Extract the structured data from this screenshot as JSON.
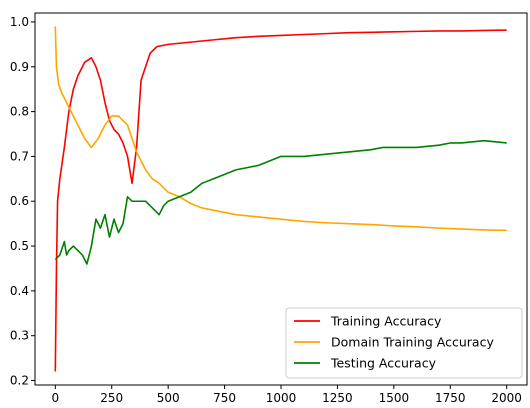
{
  "chart_data": {
    "type": "line",
    "title": "",
    "xlabel": "",
    "ylabel": "",
    "xlim": [
      -90,
      2090
    ],
    "ylim": [
      0.19,
      1.02
    ],
    "xticks": [
      0,
      250,
      500,
      750,
      1000,
      1250,
      1500,
      1750,
      2000
    ],
    "yticks": [
      0.2,
      0.3,
      0.4,
      0.5,
      0.6,
      0.7,
      0.8,
      0.9,
      1.0
    ],
    "grid": false,
    "legend_position": "bottom-right",
    "series": [
      {
        "name": "Training Accuracy",
        "color": "#ff0000",
        "x": [
          0,
          5,
          10,
          20,
          40,
          60,
          80,
          100,
          130,
          160,
          180,
          200,
          220,
          240,
          260,
          280,
          300,
          320,
          340,
          360,
          380,
          400,
          420,
          450,
          500,
          600,
          700,
          800,
          900,
          1000,
          1100,
          1200,
          1300,
          1400,
          1500,
          1600,
          1700,
          1800,
          1900,
          2000
        ],
        "values": [
          0.22,
          0.45,
          0.6,
          0.65,
          0.72,
          0.8,
          0.85,
          0.88,
          0.91,
          0.92,
          0.9,
          0.87,
          0.82,
          0.78,
          0.76,
          0.75,
          0.73,
          0.7,
          0.64,
          0.72,
          0.87,
          0.9,
          0.93,
          0.945,
          0.95,
          0.955,
          0.96,
          0.965,
          0.968,
          0.97,
          0.972,
          0.974,
          0.976,
          0.977,
          0.978,
          0.979,
          0.98,
          0.98,
          0.981,
          0.982
        ]
      },
      {
        "name": "Domain Training Accuracy",
        "color": "#ffa500",
        "x": [
          0,
          5,
          15,
          30,
          50,
          70,
          100,
          130,
          160,
          190,
          220,
          250,
          280,
          300,
          320,
          340,
          360,
          380,
          400,
          430,
          460,
          500,
          550,
          600,
          650,
          700,
          800,
          900,
          1000,
          1100,
          1200,
          1300,
          1400,
          1500,
          1600,
          1700,
          1800,
          1900,
          2000
        ],
        "values": [
          0.99,
          0.9,
          0.86,
          0.84,
          0.82,
          0.8,
          0.77,
          0.74,
          0.72,
          0.74,
          0.77,
          0.79,
          0.79,
          0.78,
          0.77,
          0.74,
          0.71,
          0.69,
          0.67,
          0.65,
          0.64,
          0.62,
          0.61,
          0.595,
          0.585,
          0.58,
          0.57,
          0.565,
          0.56,
          0.555,
          0.552,
          0.55,
          0.548,
          0.545,
          0.543,
          0.54,
          0.538,
          0.536,
          0.535
        ]
      },
      {
        "name": "Testing Accuracy",
        "color": "#008000",
        "x": [
          0,
          20,
          40,
          50,
          60,
          80,
          100,
          120,
          140,
          160,
          180,
          200,
          220,
          240,
          260,
          280,
          300,
          320,
          340,
          360,
          400,
          420,
          440,
          460,
          480,
          500,
          550,
          600,
          650,
          700,
          750,
          800,
          850,
          900,
          950,
          1000,
          1100,
          1200,
          1300,
          1400,
          1450,
          1500,
          1600,
          1700,
          1750,
          1800,
          1900,
          2000
        ],
        "values": [
          0.47,
          0.48,
          0.51,
          0.48,
          0.49,
          0.5,
          0.49,
          0.48,
          0.46,
          0.5,
          0.56,
          0.54,
          0.57,
          0.52,
          0.56,
          0.53,
          0.55,
          0.61,
          0.6,
          0.6,
          0.6,
          0.59,
          0.58,
          0.57,
          0.59,
          0.6,
          0.61,
          0.62,
          0.64,
          0.65,
          0.66,
          0.67,
          0.675,
          0.68,
          0.69,
          0.7,
          0.7,
          0.705,
          0.71,
          0.715,
          0.72,
          0.72,
          0.72,
          0.725,
          0.73,
          0.73,
          0.735,
          0.73
        ]
      }
    ]
  }
}
